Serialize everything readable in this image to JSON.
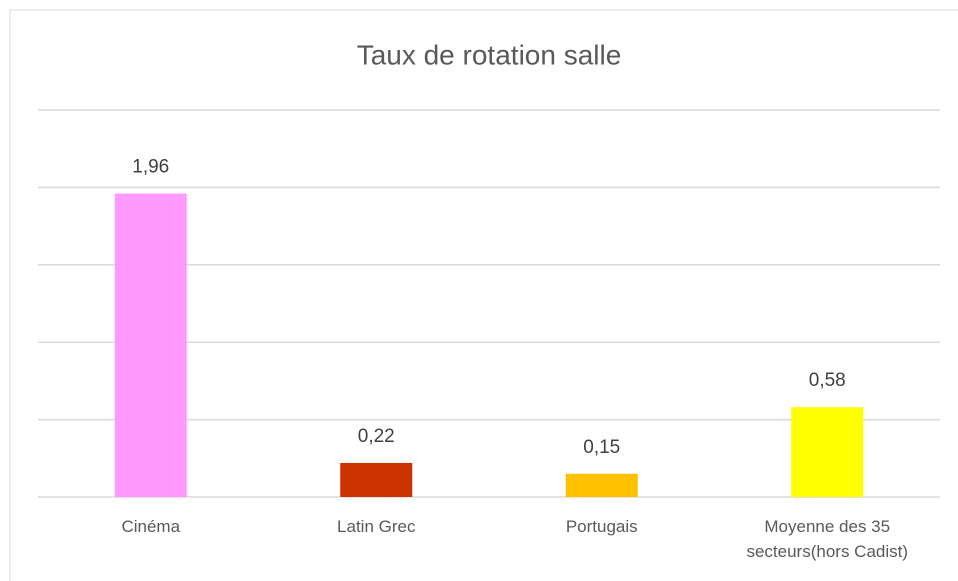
{
  "chart_data": {
    "type": "bar",
    "title": "Taux de rotation salle",
    "categories": [
      "Cinéma",
      "Latin Grec",
      "Portugais",
      "Moyenne des 35 secteurs(hors Cadist)"
    ],
    "values": [
      1.96,
      0.22,
      0.15,
      0.58
    ],
    "value_labels": [
      "1,96",
      "0,22",
      "0,15",
      "0,58"
    ],
    "colors": [
      "#ff99ff",
      "#cc3300",
      "#ffc000",
      "#ffff00"
    ],
    "ylim": [
      0,
      2.5
    ],
    "yticks": [
      0,
      0.5,
      1,
      1.5,
      2,
      2.5
    ],
    "grid": true
  }
}
